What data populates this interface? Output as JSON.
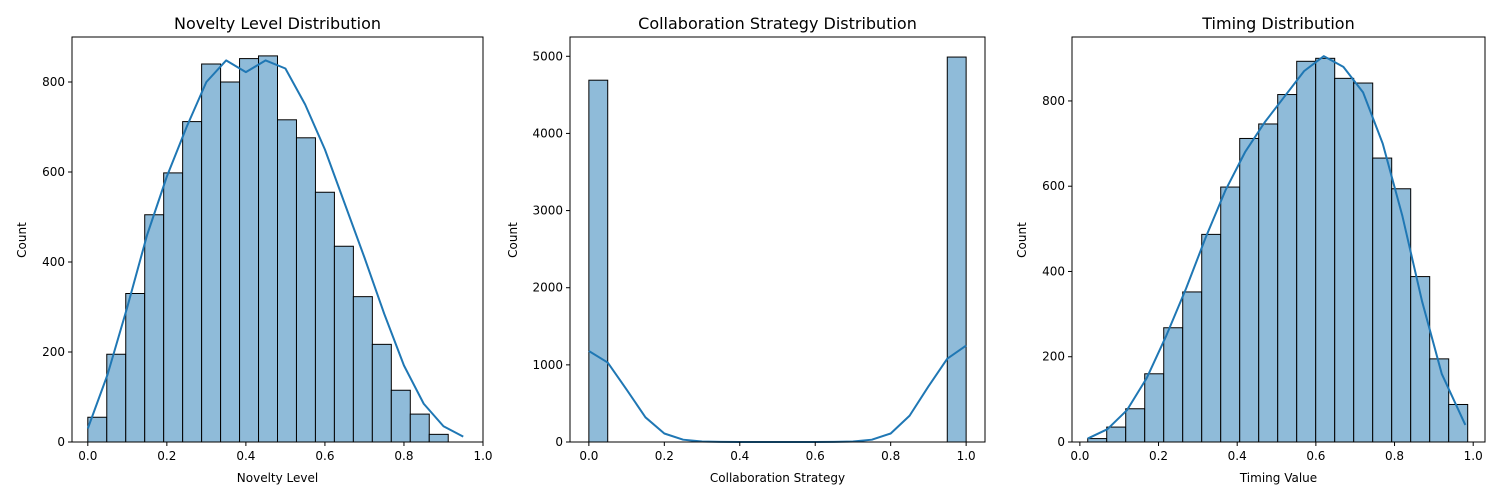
{
  "chart_data": [
    {
      "type": "bar",
      "title": "Novelty Level Distribution",
      "xlabel": "Novelty Level",
      "ylabel": "Count",
      "xlim": [
        -0.04,
        1.0
      ],
      "ylim": [
        0,
        900
      ],
      "xticks": [
        "0.0",
        "0.2",
        "0.4",
        "0.6",
        "0.8",
        "1.0"
      ],
      "yticks": [
        "0",
        "200",
        "400",
        "600",
        "800"
      ],
      "grid": false,
      "bins": {
        "start": 0.0,
        "width": 0.048
      },
      "values": [
        55,
        195,
        330,
        505,
        598,
        712,
        840,
        800,
        852,
        858,
        716,
        676,
        555,
        435,
        323,
        217,
        115,
        62,
        17
      ],
      "kde": {
        "x": [
          0.0,
          0.05,
          0.1,
          0.15,
          0.2,
          0.25,
          0.3,
          0.35,
          0.4,
          0.45,
          0.5,
          0.55,
          0.6,
          0.65,
          0.7,
          0.75,
          0.8,
          0.85,
          0.9,
          0.95
        ],
        "y": [
          30,
          150,
          300,
          460,
          590,
          700,
          800,
          848,
          822,
          848,
          830,
          750,
          650,
          530,
          410,
          285,
          170,
          85,
          35,
          12
        ]
      },
      "color": "#1f77b4",
      "bar_fill": "#8fbbd9"
    },
    {
      "type": "bar",
      "title": "Collaboration Strategy Distribution",
      "xlabel": "Collaboration Strategy",
      "ylabel": "Count",
      "xlim": [
        -0.05,
        1.05
      ],
      "ylim": [
        0,
        5250
      ],
      "xticks": [
        "0.0",
        "0.2",
        "0.4",
        "0.6",
        "0.8",
        "1.0"
      ],
      "yticks": [
        "0",
        "1000",
        "2000",
        "3000",
        "4000",
        "5000"
      ],
      "grid": false,
      "bins": {
        "start": 0.0,
        "width": 0.05
      },
      "values": [
        4690,
        0,
        0,
        0,
        0,
        0,
        0,
        0,
        0,
        0,
        0,
        0,
        0,
        0,
        0,
        0,
        0,
        0,
        0,
        4990
      ],
      "kde": {
        "x": [
          0.0,
          0.05,
          0.1,
          0.15,
          0.2,
          0.25,
          0.3,
          0.35,
          0.4,
          0.5,
          0.6,
          0.65,
          0.7,
          0.75,
          0.8,
          0.85,
          0.9,
          0.95,
          1.0
        ],
        "y": [
          1180,
          1030,
          680,
          320,
          110,
          30,
          6,
          1,
          0,
          0,
          0,
          1,
          6,
          30,
          110,
          340,
          720,
          1080,
          1250
        ]
      },
      "color": "#1f77b4",
      "bar_fill": "#8fbbd9"
    },
    {
      "type": "bar",
      "title": "Timing Distribution",
      "xlabel": "Timing Value",
      "ylabel": "Count",
      "xlim": [
        -0.02,
        1.03
      ],
      "ylim": [
        0,
        950
      ],
      "xticks": [
        "0.0",
        "0.2",
        "0.4",
        "0.6",
        "0.8",
        "1.0"
      ],
      "yticks": [
        "0",
        "200",
        "400",
        "600",
        "800"
      ],
      "grid": false,
      "bins": {
        "start": 0.02,
        "width": 0.0483
      },
      "values": [
        8,
        35,
        78,
        160,
        268,
        352,
        487,
        598,
        712,
        746,
        815,
        893,
        900,
        853,
        842,
        666,
        594,
        388,
        195,
        88
      ],
      "kde": {
        "x": [
          0.02,
          0.07,
          0.12,
          0.17,
          0.22,
          0.27,
          0.32,
          0.37,
          0.42,
          0.47,
          0.52,
          0.57,
          0.62,
          0.67,
          0.72,
          0.77,
          0.82,
          0.87,
          0.92,
          0.98
        ],
        "y": [
          8,
          30,
          75,
          150,
          250,
          360,
          480,
          590,
          680,
          750,
          810,
          870,
          905,
          880,
          820,
          700,
          530,
          330,
          160,
          40
        ]
      },
      "color": "#1f77b4",
      "bar_fill": "#8fbbd9"
    }
  ]
}
